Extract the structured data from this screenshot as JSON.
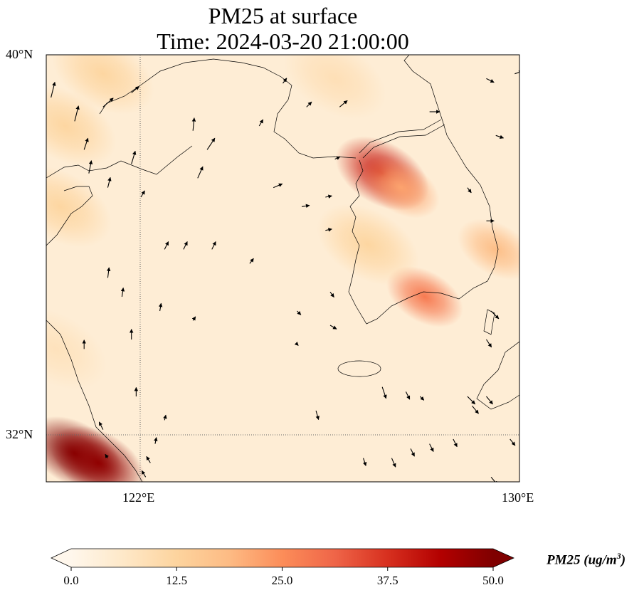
{
  "title": {
    "line1": "PM25 at surface",
    "line2": "Time: 2024-03-20 21:00:00"
  },
  "chart_data": {
    "type": "heatmap",
    "title": "PM25 at surface",
    "subtitle": "Time: 2024-03-20 21:00:00",
    "variable": "PM25",
    "units_label": "PM25 (ug/m",
    "units_sup": "3",
    "units_close": ")",
    "lon_range": [
      120,
      130
    ],
    "lat_range": [
      31,
      40
    ],
    "x_ticks": [
      "122°E",
      "130°E"
    ],
    "x_tick_values": [
      122,
      130
    ],
    "y_ticks": [
      "40°N",
      "32°N"
    ],
    "y_tick_values": [
      40,
      32
    ],
    "gridlines": {
      "lon": [
        122
      ],
      "lat": [
        32
      ]
    },
    "colorbar": {
      "cmap": "OrRd",
      "min": 0,
      "max": 50,
      "extend": "both",
      "ticks": [
        "0.0",
        "12.5",
        "25.0",
        "37.5",
        "50.0"
      ],
      "tick_values": [
        0,
        12.5,
        25,
        37.5,
        50
      ],
      "colors": [
        "#fff7ec",
        "#fee8c8",
        "#fdd49e",
        "#fdbb84",
        "#fc8d59",
        "#ef6548",
        "#d7301f",
        "#b30000",
        "#7f0000"
      ]
    },
    "hotspots": [
      {
        "lon": 120.6,
        "lat": 31.6,
        "value": 55
      },
      {
        "lon": 121.1,
        "lat": 31.4,
        "value": 48
      },
      {
        "lon": 127.1,
        "lat": 37.5,
        "value": 40
      },
      {
        "lon": 127.5,
        "lat": 37.2,
        "value": 22
      },
      {
        "lon": 128.0,
        "lat": 34.9,
        "value": 28
      },
      {
        "lon": 129.5,
        "lat": 35.9,
        "value": 18
      },
      {
        "lon": 126.8,
        "lat": 36.0,
        "value": 12
      },
      {
        "lon": 121.2,
        "lat": 39.6,
        "value": 12
      },
      {
        "lon": 120.4,
        "lat": 38.5,
        "value": 12
      },
      {
        "lon": 120.3,
        "lat": 36.8,
        "value": 12
      },
      {
        "lon": 126.1,
        "lat": 39.5,
        "value": 9
      },
      {
        "lon": 120.2,
        "lat": 33.8,
        "value": 8
      }
    ],
    "background_value": 4,
    "wind_vectors": [
      {
        "lon": 120.1,
        "lat": 39.1,
        "u": 0.3,
        "v": 1.2
      },
      {
        "lon": 120.6,
        "lat": 38.6,
        "u": 0.3,
        "v": 1.2
      },
      {
        "lon": 120.8,
        "lat": 38.0,
        "u": 0.3,
        "v": 0.9
      },
      {
        "lon": 120.9,
        "lat": 37.5,
        "u": 0.2,
        "v": 1.0
      },
      {
        "lon": 121.3,
        "lat": 37.2,
        "u": 0.2,
        "v": 0.8
      },
      {
        "lon": 121.8,
        "lat": 37.7,
        "u": 0.3,
        "v": 1.0
      },
      {
        "lon": 121.2,
        "lat": 38.9,
        "u": 0.8,
        "v": 0.7
      },
      {
        "lon": 121.8,
        "lat": 39.2,
        "u": 0.6,
        "v": 0.5
      },
      {
        "lon": 123.1,
        "lat": 38.4,
        "u": 0.1,
        "v": 1.0
      },
      {
        "lon": 123.4,
        "lat": 38.0,
        "u": 0.6,
        "v": 0.9
      },
      {
        "lon": 123.2,
        "lat": 37.4,
        "u": 0.4,
        "v": 0.9
      },
      {
        "lon": 122.0,
        "lat": 37.0,
        "u": 0.3,
        "v": 0.5
      },
      {
        "lon": 122.5,
        "lat": 35.9,
        "u": 0.3,
        "v": 0.6
      },
      {
        "lon": 122.9,
        "lat": 35.9,
        "u": 0.3,
        "v": 0.6
      },
      {
        "lon": 123.5,
        "lat": 35.9,
        "u": 0.3,
        "v": 0.6
      },
      {
        "lon": 124.3,
        "lat": 35.6,
        "u": 0.3,
        "v": 0.4
      },
      {
        "lon": 121.3,
        "lat": 35.3,
        "u": 0.1,
        "v": 0.8
      },
      {
        "lon": 121.6,
        "lat": 34.9,
        "u": 0.1,
        "v": 0.7
      },
      {
        "lon": 122.4,
        "lat": 34.6,
        "u": 0.1,
        "v": 0.6
      },
      {
        "lon": 123.1,
        "lat": 34.4,
        "u": 0.2,
        "v": 0.3
      },
      {
        "lon": 121.8,
        "lat": 34.0,
        "u": 0.0,
        "v": 0.8
      },
      {
        "lon": 120.8,
        "lat": 33.8,
        "u": 0.0,
        "v": 0.7
      },
      {
        "lon": 121.9,
        "lat": 32.8,
        "u": 0.0,
        "v": 0.7
      },
      {
        "lon": 122.5,
        "lat": 32.3,
        "u": 0.1,
        "v": 0.4
      },
      {
        "lon": 122.3,
        "lat": 31.8,
        "u": 0.1,
        "v": 0.5
      },
      {
        "lon": 121.2,
        "lat": 32.1,
        "u": -0.3,
        "v": 0.6
      },
      {
        "lon": 121.3,
        "lat": 31.5,
        "u": -0.2,
        "v": 0.3
      },
      {
        "lon": 122.2,
        "lat": 31.4,
        "u": -0.3,
        "v": 0.5
      },
      {
        "lon": 122.1,
        "lat": 31.1,
        "u": -0.3,
        "v": 0.5
      },
      {
        "lon": 124.5,
        "lat": 38.5,
        "u": 0.3,
        "v": 0.5
      },
      {
        "lon": 124.8,
        "lat": 37.2,
        "u": 0.7,
        "v": 0.3
      },
      {
        "lon": 125.4,
        "lat": 36.8,
        "u": 0.6,
        "v": 0.1
      },
      {
        "lon": 125.9,
        "lat": 36.3,
        "u": 0.5,
        "v": 0.1
      },
      {
        "lon": 126.0,
        "lat": 35.0,
        "u": 0.3,
        "v": -0.4
      },
      {
        "lon": 126.0,
        "lat": 34.3,
        "u": 0.5,
        "v": -0.3
      },
      {
        "lon": 125.3,
        "lat": 34.6,
        "u": 0.3,
        "v": -0.3
      },
      {
        "lon": 125.3,
        "lat": 33.9,
        "u": 0.1,
        "v": -0.1
      },
      {
        "lon": 125.7,
        "lat": 32.5,
        "u": 0.2,
        "v": -0.7
      },
      {
        "lon": 127.1,
        "lat": 33.0,
        "u": 0.3,
        "v": -0.9
      },
      {
        "lon": 127.6,
        "lat": 32.9,
        "u": 0.3,
        "v": -0.6
      },
      {
        "lon": 127.9,
        "lat": 32.8,
        "u": 0.3,
        "v": -0.3
      },
      {
        "lon": 127.3,
        "lat": 31.5,
        "u": 0.3,
        "v": -0.7
      },
      {
        "lon": 127.7,
        "lat": 31.7,
        "u": 0.3,
        "v": -0.6
      },
      {
        "lon": 128.1,
        "lat": 31.8,
        "u": 0.3,
        "v": -0.6
      },
      {
        "lon": 128.6,
        "lat": 31.9,
        "u": 0.3,
        "v": -0.6
      },
      {
        "lon": 126.7,
        "lat": 31.5,
        "u": 0.2,
        "v": -0.6
      },
      {
        "lon": 128.9,
        "lat": 32.8,
        "u": 0.6,
        "v": -0.6
      },
      {
        "lon": 129.0,
        "lat": 32.6,
        "u": 0.5,
        "v": -0.6
      },
      {
        "lon": 129.3,
        "lat": 32.8,
        "u": 0.5,
        "v": -0.6
      },
      {
        "lon": 129.8,
        "lat": 31.9,
        "u": 0.4,
        "v": -0.5
      },
      {
        "lon": 129.4,
        "lat": 31.1,
        "u": 0.5,
        "v": -0.6
      },
      {
        "lon": 129.5,
        "lat": 38.3,
        "u": 0.6,
        "v": -0.2
      },
      {
        "lon": 128.1,
        "lat": 38.8,
        "u": 0.8,
        "v": 0.0
      },
      {
        "lon": 129.3,
        "lat": 39.5,
        "u": 0.6,
        "v": -0.3
      },
      {
        "lon": 129.9,
        "lat": 39.6,
        "u": 0.6,
        "v": 0.2
      },
      {
        "lon": 128.9,
        "lat": 37.2,
        "u": 0.3,
        "v": -0.4
      },
      {
        "lon": 129.3,
        "lat": 36.5,
        "u": 0.6,
        "v": 0.0
      },
      {
        "lon": 129.4,
        "lat": 34.6,
        "u": 0.6,
        "v": -0.6
      },
      {
        "lon": 129.3,
        "lat": 34.0,
        "u": 0.4,
        "v": -0.6
      },
      {
        "lon": 125.0,
        "lat": 39.4,
        "u": 0.3,
        "v": 0.4
      },
      {
        "lon": 125.5,
        "lat": 38.9,
        "u": 0.4,
        "v": 0.4
      },
      {
        "lon": 126.2,
        "lat": 38.9,
        "u": 0.6,
        "v": 0.5
      },
      {
        "lon": 126.1,
        "lat": 37.8,
        "u": 0.4,
        "v": 0.2
      },
      {
        "lon": 125.9,
        "lat": 37.0,
        "u": 0.5,
        "v": 0.1
      }
    ]
  }
}
